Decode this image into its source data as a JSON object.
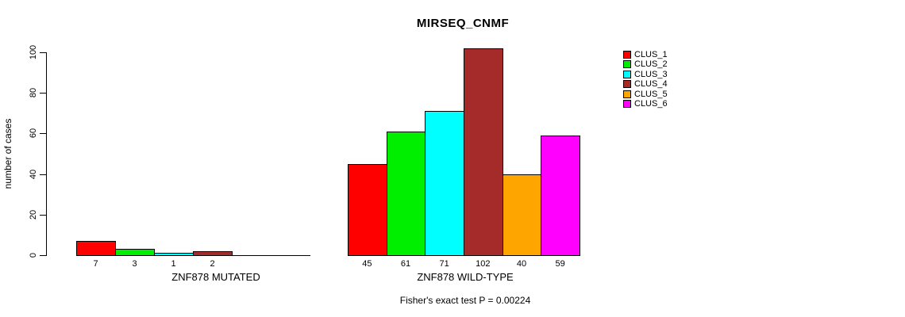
{
  "title": "MIRSEQ_CNMF",
  "footer_note": "Fisher's exact test P = 0.00224",
  "chart_data": {
    "type": "bar",
    "title": "MIRSEQ_CNMF",
    "xlabel": "",
    "ylabel": "number of cases",
    "ylim": [
      0,
      100
    ],
    "yticks": [
      0,
      20,
      40,
      60,
      80,
      100
    ],
    "grid": false,
    "legend_position": "right",
    "series": [
      {
        "name": "CLUS_1",
        "color": "#FF0000"
      },
      {
        "name": "CLUS_2",
        "color": "#00EE00"
      },
      {
        "name": "CLUS_3",
        "color": "#00FFFF"
      },
      {
        "name": "CLUS_4",
        "color": "#A52A2A"
      },
      {
        "name": "CLUS_5",
        "color": "#FFA500"
      },
      {
        "name": "CLUS_6",
        "color": "#FF00FF"
      }
    ],
    "groups": [
      {
        "label": "ZNF878 MUTATED",
        "categories": [
          "CLUS_1",
          "CLUS_2",
          "CLUS_3",
          "CLUS_4",
          "CLUS_5",
          "CLUS_6"
        ],
        "values": [
          7,
          3,
          1,
          2,
          0,
          0
        ],
        "bar_labels": [
          "7",
          "3",
          "1",
          "2",
          "",
          ""
        ]
      },
      {
        "label": "ZNF878 WILD-TYPE",
        "categories": [
          "CLUS_1",
          "CLUS_2",
          "CLUS_3",
          "CLUS_4",
          "CLUS_5",
          "CLUS_6"
        ],
        "values": [
          45,
          61,
          71,
          102,
          40,
          59
        ],
        "bar_labels": [
          "45",
          "61",
          "71",
          "102",
          "40",
          "59"
        ]
      }
    ],
    "annotation": "Fisher's exact test P = 0.00224"
  }
}
